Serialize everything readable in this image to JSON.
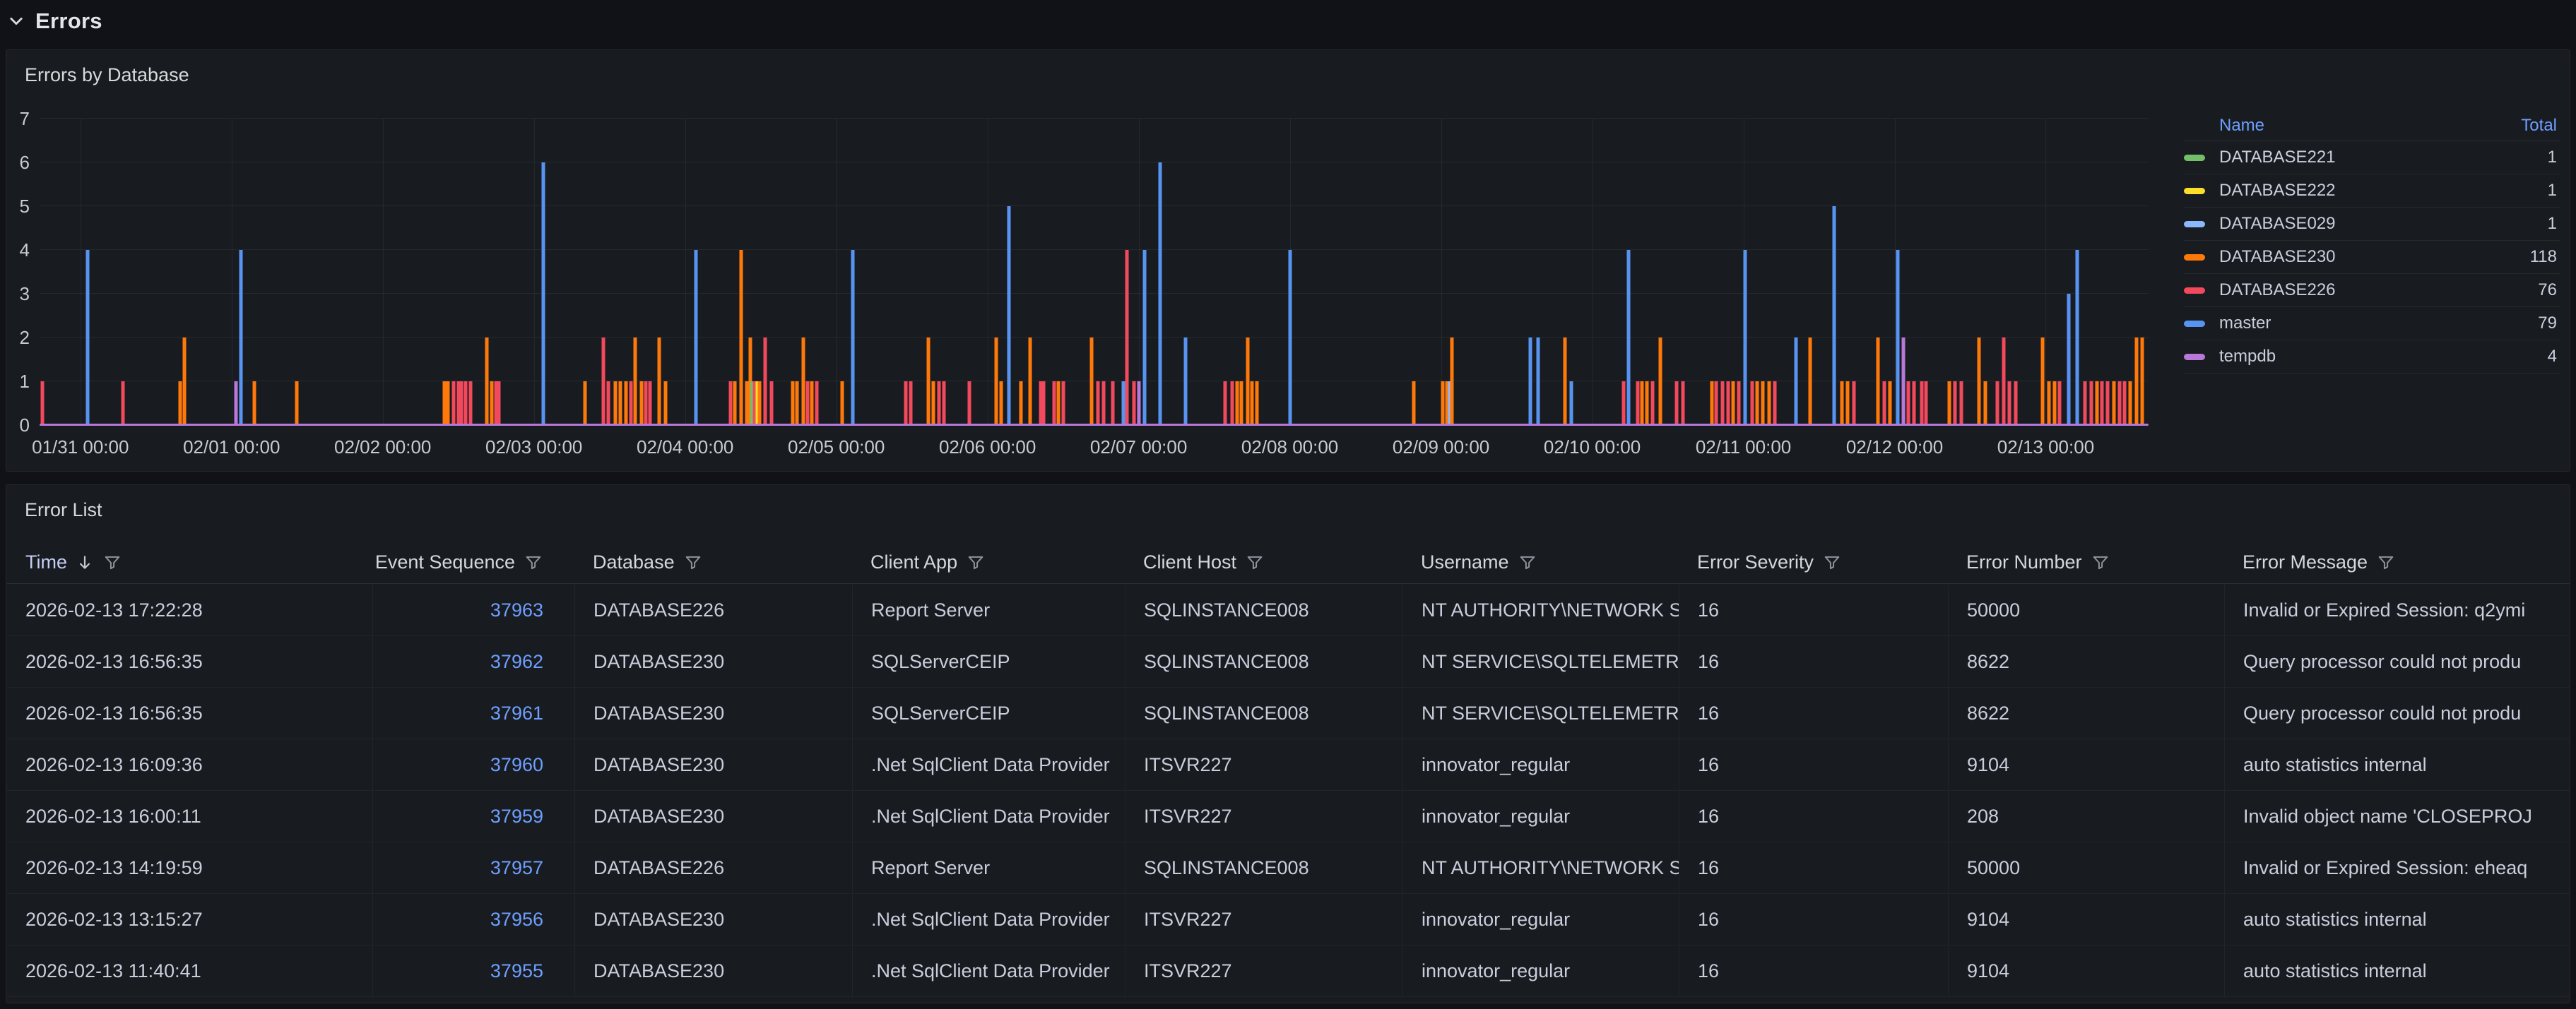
{
  "page": {
    "row_title": "Errors"
  },
  "colors": {
    "background": "#111217",
    "panel": "#181b1f",
    "link": "#6e9fff",
    "text": "#ccccdc",
    "sorted_header": "#c5cdf5"
  },
  "panels": {
    "chart": {
      "title": "Errors by Database",
      "legend": {
        "name_header": "Name",
        "total_header": "Total",
        "items": [
          {
            "name": "DATABASE221",
            "total": "1",
            "color": "#73BF69"
          },
          {
            "name": "DATABASE222",
            "total": "1",
            "color": "#FADE2A"
          },
          {
            "name": "DATABASE029",
            "total": "1",
            "color": "#8AB8FF"
          },
          {
            "name": "DATABASE230",
            "total": "118",
            "color": "#FF780A"
          },
          {
            "name": "DATABASE226",
            "total": "76",
            "color": "#F2495C"
          },
          {
            "name": "master",
            "total": "79",
            "color": "#5794F2"
          },
          {
            "name": "tempdb",
            "total": "4",
            "color": "#B877D9"
          }
        ]
      }
    },
    "table": {
      "title": "Error List",
      "columns": [
        {
          "label": "Time",
          "sorted": true,
          "align": "left"
        },
        {
          "label": "Event Sequence",
          "sorted": false,
          "align": "right"
        },
        {
          "label": "Database",
          "sorted": false,
          "align": "left"
        },
        {
          "label": "Client App",
          "sorted": false,
          "align": "left"
        },
        {
          "label": "Client Host",
          "sorted": false,
          "align": "left"
        },
        {
          "label": "Username",
          "sorted": false,
          "align": "left"
        },
        {
          "label": "Error Severity",
          "sorted": false,
          "align": "left"
        },
        {
          "label": "Error Number",
          "sorted": false,
          "align": "left"
        },
        {
          "label": "Error Message",
          "sorted": false,
          "align": "left"
        }
      ],
      "rows": [
        [
          "2026-02-13 17:22:28",
          "37963",
          "DATABASE226",
          "Report Server",
          "SQLINSTANCE008",
          "NT AUTHORITY\\NETWORK S",
          "16",
          "50000",
          "Invalid or Expired Session: q2ymi"
        ],
        [
          "2026-02-13 16:56:35",
          "37962",
          "DATABASE230",
          "SQLServerCEIP",
          "SQLINSTANCE008",
          "NT SERVICE\\SQLTELEMETR",
          "16",
          "8622",
          "Query processor could not produ"
        ],
        [
          "2026-02-13 16:56:35",
          "37961",
          "DATABASE230",
          "SQLServerCEIP",
          "SQLINSTANCE008",
          "NT SERVICE\\SQLTELEMETR",
          "16",
          "8622",
          "Query processor could not produ"
        ],
        [
          "2026-02-13 16:09:36",
          "37960",
          "DATABASE230",
          ".Net SqlClient Data Provider",
          "ITSVR227",
          "innovator_regular",
          "16",
          "9104",
          "auto statistics internal"
        ],
        [
          "2026-02-13 16:00:11",
          "37959",
          "DATABASE230",
          ".Net SqlClient Data Provider",
          "ITSVR227",
          "innovator_regular",
          "16",
          "208",
          "Invalid object name 'CLOSEPROJ"
        ],
        [
          "2026-02-13 14:19:59",
          "37957",
          "DATABASE226",
          "Report Server",
          "SQLINSTANCE008",
          "NT AUTHORITY\\NETWORK S",
          "16",
          "50000",
          "Invalid or Expired Session: eheaq"
        ],
        [
          "2026-02-13 13:15:27",
          "37956",
          "DATABASE230",
          ".Net SqlClient Data Provider",
          "ITSVR227",
          "innovator_regular",
          "16",
          "9104",
          "auto statistics internal"
        ],
        [
          "2026-02-13 11:40:41",
          "37955",
          "DATABASE230",
          ".Net SqlClient Data Provider",
          "ITSVR227",
          "innovator_regular",
          "16",
          "9104",
          "auto statistics internal"
        ]
      ]
    }
  },
  "chart_data": {
    "type": "bar",
    "title": "Errors by Database",
    "ylabel": "",
    "xlabel": "",
    "ylim": [
      0,
      7
    ],
    "y_ticks": [
      0,
      1,
      2,
      3,
      4,
      5,
      6,
      7
    ],
    "grid": true,
    "legend_position": "right",
    "x_tick_labels": [
      "01/31 00:00",
      "02/01 00:00",
      "02/02 00:00",
      "02/03 00:00",
      "02/04 00:00",
      "02/05 00:00",
      "02/06 00:00",
      "02/07 00:00",
      "02/08 00:00",
      "02/09 00:00",
      "02/10 00:00",
      "02/11 00:00",
      "02/12 00:00",
      "02/13 00:00"
    ],
    "x_domain_days": [
      -0.27,
      13.68
    ],
    "series_keys": {
      "g": "DATABASE221",
      "y": "DATABASE222",
      "lb": "DATABASE029",
      "o": "DATABASE230",
      "r": "DATABASE226",
      "b": "master",
      "p": "tempdb"
    },
    "series_colors": {
      "g": "#73BF69",
      "y": "#FADE2A",
      "lb": "#8AB8FF",
      "o": "#FF780A",
      "r": "#F2495C",
      "b": "#5794F2",
      "p": "#B877D9"
    },
    "baseline_series": "p",
    "bars": [
      [
        -0.25,
        1,
        "r"
      ],
      [
        0.05,
        4,
        "b"
      ],
      [
        0.28,
        1,
        "r"
      ],
      [
        0.66,
        1,
        "o"
      ],
      [
        0.69,
        2,
        "o"
      ],
      [
        1.03,
        1,
        "p"
      ],
      [
        1.06,
        4,
        "b"
      ],
      [
        1.15,
        1,
        "o"
      ],
      [
        1.43,
        1,
        "o"
      ],
      [
        2.41,
        1,
        "o"
      ],
      [
        2.43,
        1,
        "o"
      ],
      [
        2.47,
        1,
        "r"
      ],
      [
        2.5,
        1,
        "r"
      ],
      [
        2.52,
        1,
        "r"
      ],
      [
        2.55,
        1,
        "r"
      ],
      [
        2.58,
        1,
        "r"
      ],
      [
        2.69,
        2,
        "o"
      ],
      [
        2.72,
        1,
        "o"
      ],
      [
        2.75,
        1,
        "r"
      ],
      [
        2.77,
        1,
        "r"
      ],
      [
        3.06,
        6,
        "b"
      ],
      [
        3.34,
        1,
        "o"
      ],
      [
        3.46,
        2,
        "r"
      ],
      [
        3.49,
        1,
        "r"
      ],
      [
        3.54,
        1,
        "o"
      ],
      [
        3.57,
        1,
        "o"
      ],
      [
        3.61,
        1,
        "o"
      ],
      [
        3.64,
        1,
        "r"
      ],
      [
        3.67,
        2,
        "o"
      ],
      [
        3.71,
        1,
        "o"
      ],
      [
        3.74,
        1,
        "r"
      ],
      [
        3.77,
        1,
        "r"
      ],
      [
        3.83,
        2,
        "o"
      ],
      [
        3.87,
        1,
        "o"
      ],
      [
        4.07,
        4,
        "b"
      ],
      [
        4.3,
        1,
        "r"
      ],
      [
        4.33,
        1,
        "o"
      ],
      [
        4.37,
        4,
        "o"
      ],
      [
        4.41,
        1,
        "o"
      ],
      [
        4.43,
        2,
        "o"
      ],
      [
        4.44,
        1,
        "g"
      ],
      [
        4.46,
        1,
        "r"
      ],
      [
        4.48,
        1,
        "y"
      ],
      [
        4.49,
        1,
        "o"
      ],
      [
        4.53,
        2,
        "r"
      ],
      [
        4.57,
        1,
        "r"
      ],
      [
        4.71,
        1,
        "o"
      ],
      [
        4.74,
        1,
        "o"
      ],
      [
        4.78,
        2,
        "o"
      ],
      [
        4.81,
        1,
        "r"
      ],
      [
        4.84,
        1,
        "o"
      ],
      [
        4.87,
        1,
        "r"
      ],
      [
        5.04,
        1,
        "o"
      ],
      [
        5.11,
        4,
        "b"
      ],
      [
        5.46,
        1,
        "r"
      ],
      [
        5.49,
        1,
        "r"
      ],
      [
        5.61,
        2,
        "o"
      ],
      [
        5.64,
        1,
        "o"
      ],
      [
        5.68,
        1,
        "r"
      ],
      [
        5.71,
        1,
        "r"
      ],
      [
        5.88,
        1,
        "r"
      ],
      [
        6.06,
        2,
        "o"
      ],
      [
        6.09,
        1,
        "o"
      ],
      [
        6.14,
        5,
        "b"
      ],
      [
        6.22,
        1,
        "o"
      ],
      [
        6.28,
        2,
        "o"
      ],
      [
        6.35,
        1,
        "r"
      ],
      [
        6.37,
        1,
        "r"
      ],
      [
        6.44,
        1,
        "r"
      ],
      [
        6.47,
        1,
        "o"
      ],
      [
        6.5,
        1,
        "r"
      ],
      [
        6.69,
        2,
        "o"
      ],
      [
        6.73,
        1,
        "r"
      ],
      [
        6.77,
        1,
        "r"
      ],
      [
        6.83,
        1,
        "r"
      ],
      [
        6.9,
        1,
        "b"
      ],
      [
        6.92,
        4,
        "r"
      ],
      [
        6.97,
        1,
        "r"
      ],
      [
        7.0,
        1,
        "p"
      ],
      [
        7.04,
        4,
        "b"
      ],
      [
        7.14,
        6,
        "b"
      ],
      [
        7.31,
        2,
        "b"
      ],
      [
        7.57,
        1,
        "r"
      ],
      [
        7.62,
        1,
        "r"
      ],
      [
        7.65,
        1,
        "o"
      ],
      [
        7.68,
        1,
        "o"
      ],
      [
        7.72,
        2,
        "o"
      ],
      [
        7.75,
        1,
        "o"
      ],
      [
        7.78,
        1,
        "o"
      ],
      [
        8.0,
        4,
        "b"
      ],
      [
        8.82,
        1,
        "o"
      ],
      [
        9.01,
        1,
        "o"
      ],
      [
        9.04,
        1,
        "o"
      ],
      [
        9.06,
        1,
        "lb"
      ],
      [
        9.07,
        2,
        "o"
      ],
      [
        9.59,
        2,
        "b"
      ],
      [
        9.64,
        2,
        "b"
      ],
      [
        9.82,
        2,
        "o"
      ],
      [
        9.86,
        1,
        "b"
      ],
      [
        10.21,
        1,
        "r"
      ],
      [
        10.24,
        4,
        "b"
      ],
      [
        10.3,
        1,
        "r"
      ],
      [
        10.33,
        1,
        "o"
      ],
      [
        10.36,
        1,
        "o"
      ],
      [
        10.4,
        1,
        "r"
      ],
      [
        10.45,
        2,
        "o"
      ],
      [
        10.56,
        1,
        "r"
      ],
      [
        10.6,
        1,
        "r"
      ],
      [
        10.79,
        1,
        "o"
      ],
      [
        10.82,
        1,
        "r"
      ],
      [
        10.86,
        1,
        "r"
      ],
      [
        10.9,
        1,
        "r"
      ],
      [
        10.93,
        1,
        "o"
      ],
      [
        10.97,
        1,
        "r"
      ],
      [
        11.01,
        4,
        "b"
      ],
      [
        11.06,
        1,
        "r"
      ],
      [
        11.09,
        1,
        "o"
      ],
      [
        11.13,
        1,
        "o"
      ],
      [
        11.17,
        1,
        "o"
      ],
      [
        11.21,
        1,
        "r"
      ],
      [
        11.35,
        2,
        "b"
      ],
      [
        11.44,
        2,
        "o"
      ],
      [
        11.6,
        5,
        "b"
      ],
      [
        11.65,
        1,
        "o"
      ],
      [
        11.69,
        1,
        "o"
      ],
      [
        11.73,
        1,
        "r"
      ],
      [
        11.89,
        2,
        "o"
      ],
      [
        11.93,
        1,
        "r"
      ],
      [
        11.97,
        1,
        "o"
      ],
      [
        12.02,
        4,
        "b"
      ],
      [
        12.06,
        2,
        "p"
      ],
      [
        12.09,
        1,
        "r"
      ],
      [
        12.13,
        1,
        "r"
      ],
      [
        12.18,
        1,
        "r"
      ],
      [
        12.21,
        1,
        "r"
      ],
      [
        12.36,
        1,
        "o"
      ],
      [
        12.4,
        1,
        "r"
      ],
      [
        12.44,
        1,
        "r"
      ],
      [
        12.56,
        2,
        "o"
      ],
      [
        12.6,
        1,
        "o"
      ],
      [
        12.68,
        1,
        "r"
      ],
      [
        12.72,
        2,
        "r"
      ],
      [
        12.76,
        1,
        "r"
      ],
      [
        12.8,
        1,
        "r"
      ],
      [
        12.98,
        2,
        "o"
      ],
      [
        13.02,
        1,
        "o"
      ],
      [
        13.06,
        1,
        "o"
      ],
      [
        13.09,
        1,
        "r"
      ],
      [
        13.15,
        3,
        "b"
      ],
      [
        13.21,
        4,
        "b"
      ],
      [
        13.26,
        1,
        "r"
      ],
      [
        13.3,
        1,
        "r"
      ],
      [
        13.34,
        1,
        "o"
      ],
      [
        13.37,
        1,
        "r"
      ],
      [
        13.41,
        1,
        "r"
      ],
      [
        13.45,
        1,
        "o"
      ],
      [
        13.49,
        1,
        "r"
      ],
      [
        13.52,
        1,
        "r"
      ],
      [
        13.56,
        1,
        "o"
      ],
      [
        13.6,
        2,
        "o"
      ],
      [
        13.64,
        2,
        "o"
      ]
    ]
  }
}
